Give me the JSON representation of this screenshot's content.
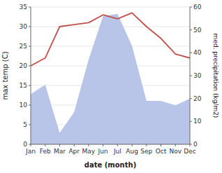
{
  "chart_data": {
    "type": "line",
    "categories": [
      "Jan",
      "Feb",
      "Mar",
      "Apr",
      "May",
      "Jun",
      "Jul",
      "Aug",
      "Sep",
      "Oct",
      "Nov",
      "Dec"
    ],
    "xlabel": "date (month)",
    "ylabel": "max temp (C)",
    "y2label": "med. precipitation (kg/m2)",
    "series": [
      {
        "type": "area",
        "axis": "y2",
        "color": "#b8c4e8",
        "values": [
          22,
          26,
          5,
          14,
          37,
          56,
          57,
          43,
          19,
          19,
          17,
          20
        ]
      },
      {
        "type": "line",
        "color": "#c0504d",
        "values": [
          20,
          22,
          30,
          30.5,
          31,
          33,
          32,
          33.5,
          30,
          27,
          23,
          22
        ]
      }
    ],
    "ylim": [
      0,
      35
    ],
    "yticks": [
      0,
      5,
      10,
      15,
      20,
      25,
      30,
      35
    ],
    "y2lim": [
      0,
      60
    ],
    "y2ticks": [
      0,
      10,
      20,
      30,
      40,
      50,
      60
    ],
    "grid": true
  }
}
